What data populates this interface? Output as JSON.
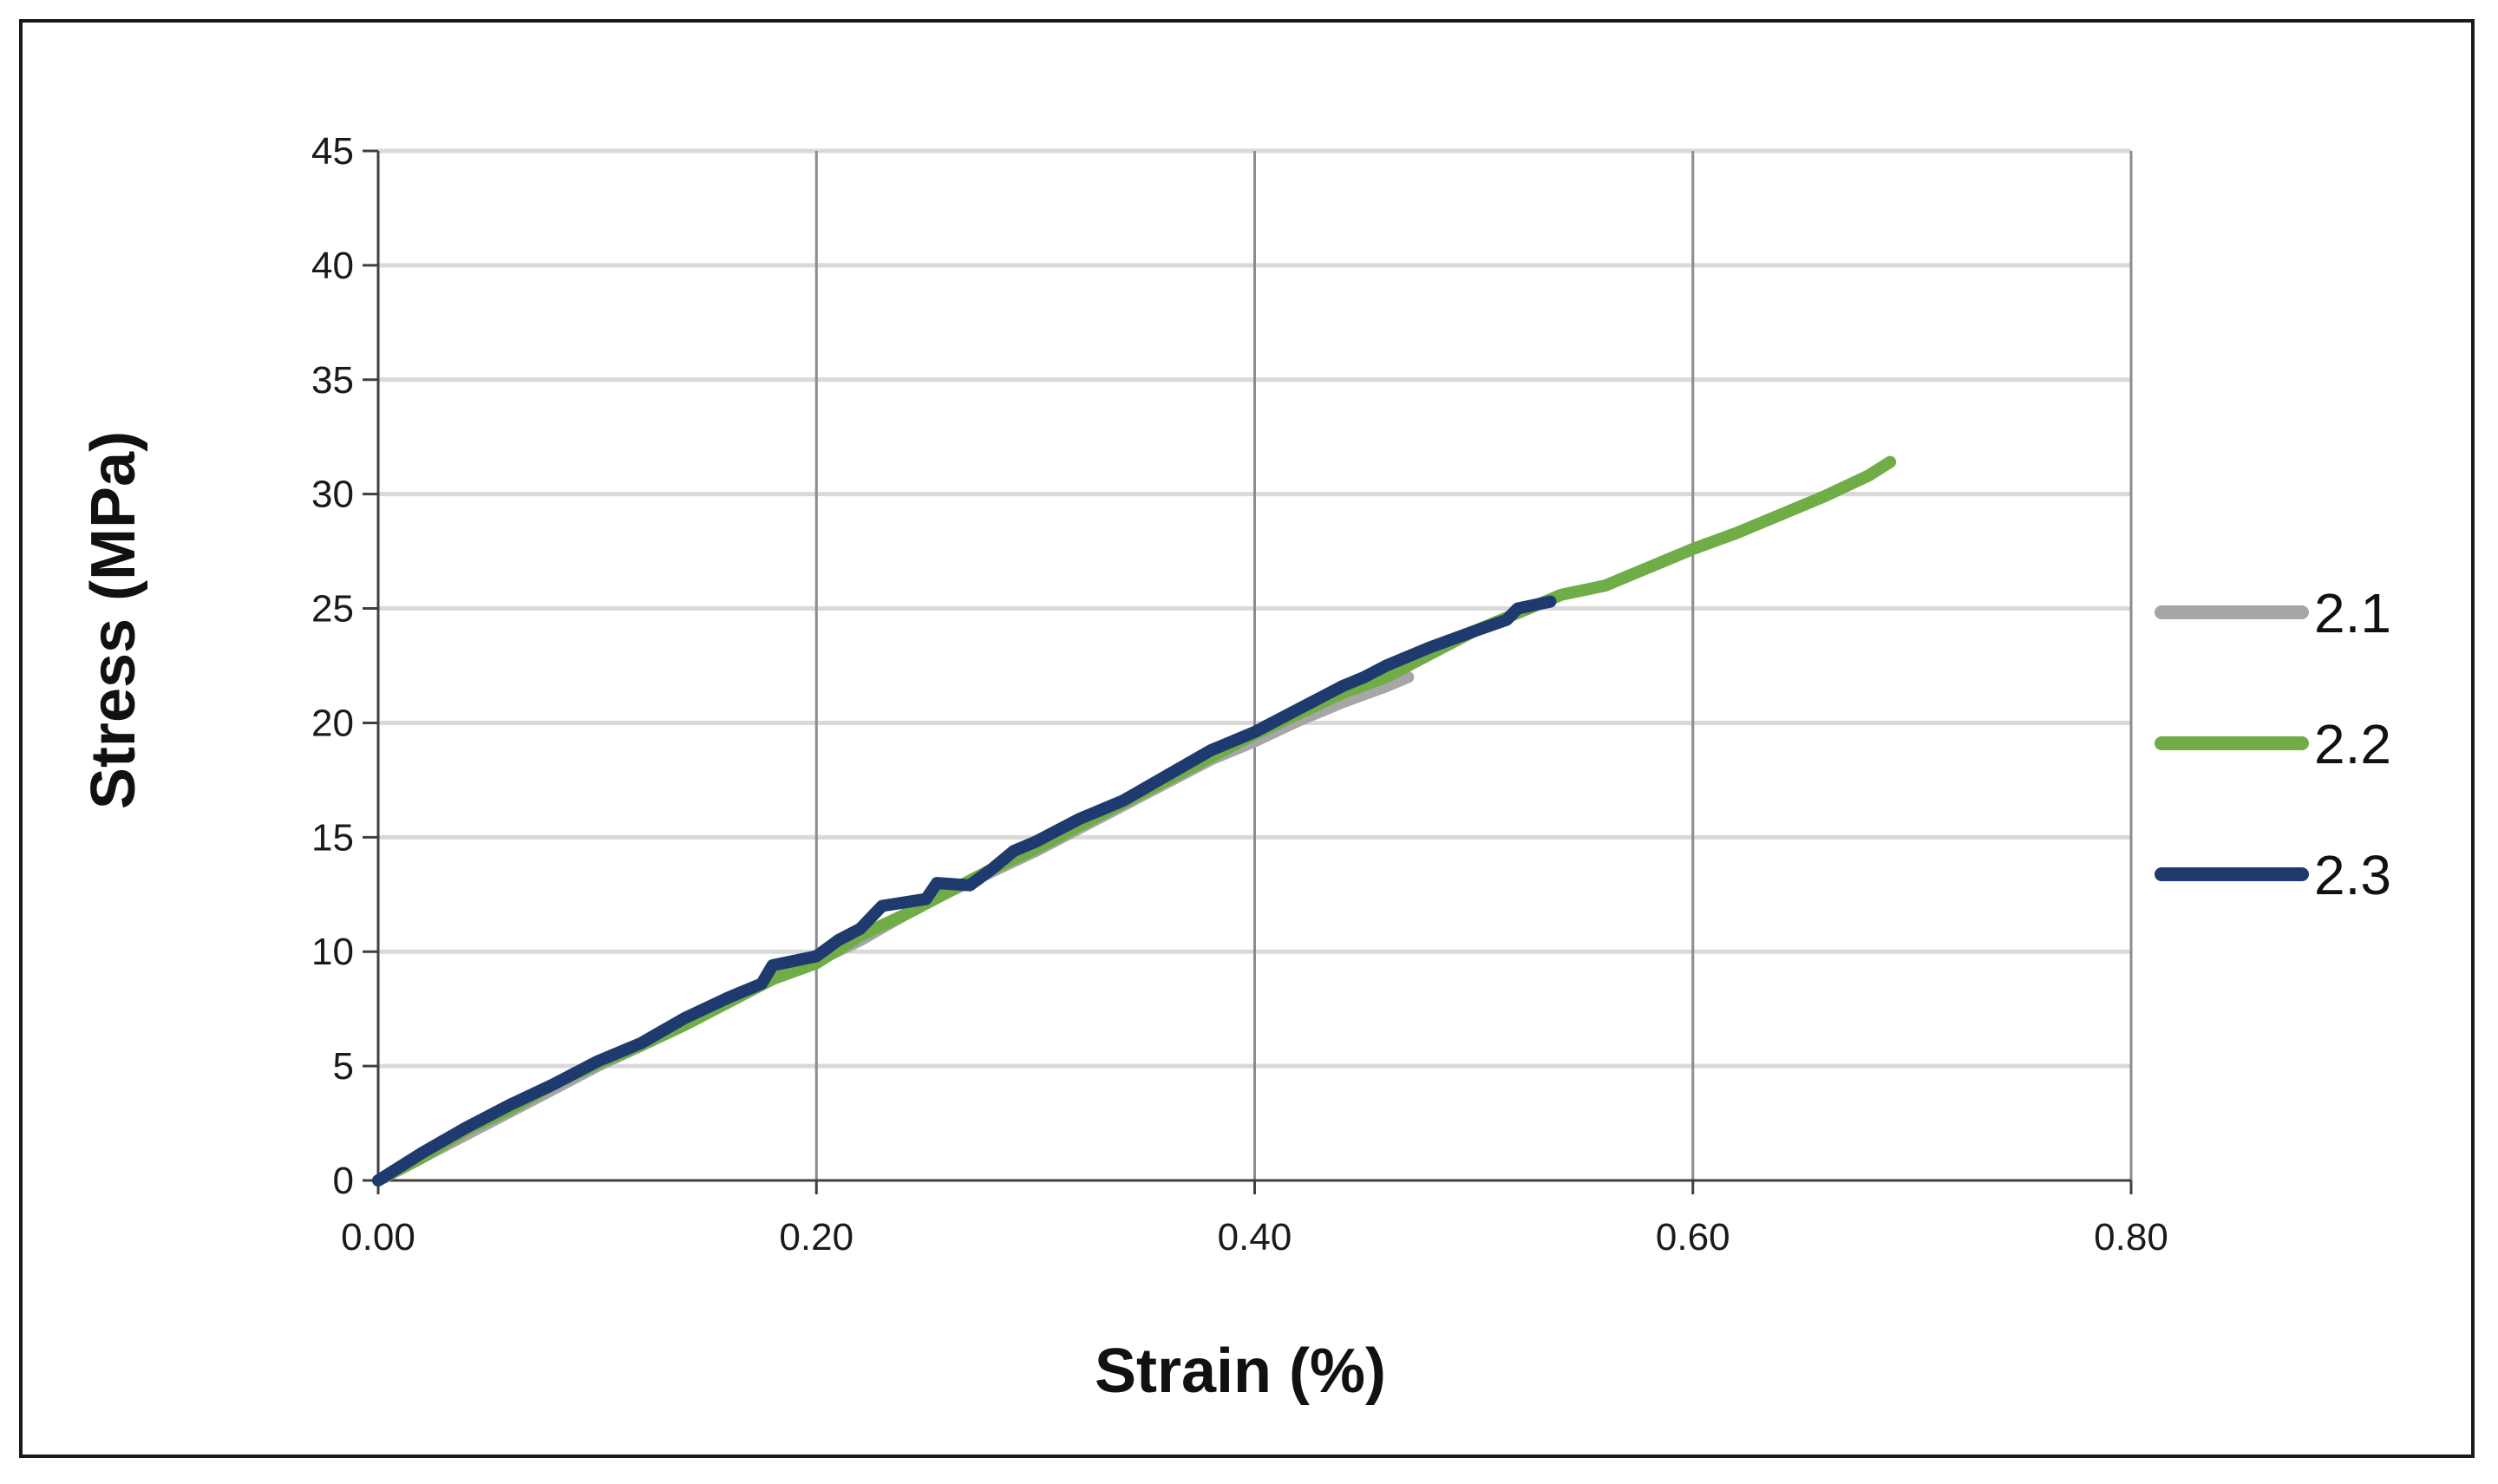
{
  "chart_data": {
    "type": "line",
    "xlabel": "Strain (%)",
    "ylabel": "Stress (MPa)",
    "xlim": [
      0,
      0.8
    ],
    "ylim": [
      0,
      45
    ],
    "x_ticks": [
      "0.00",
      "0.20",
      "0.40",
      "0.60",
      "0.80"
    ],
    "y_ticks": [
      "0",
      "5",
      "10",
      "15",
      "20",
      "25",
      "30",
      "35",
      "40",
      "45"
    ],
    "grid": "on",
    "legend_position": "right",
    "series": [
      {
        "name": "2.1",
        "color": "#a6a6a6",
        "x": [
          0.0,
          0.02,
          0.04,
          0.06,
          0.08,
          0.1,
          0.12,
          0.14,
          0.16,
          0.18,
          0.2,
          0.22,
          0.24,
          0.26,
          0.28,
          0.3,
          0.32,
          0.34,
          0.36,
          0.38,
          0.4,
          0.42,
          0.44,
          0.46,
          0.47
        ],
        "y": [
          0.0,
          1.0,
          2.0,
          3.0,
          4.0,
          5.0,
          5.9,
          6.9,
          7.9,
          8.8,
          9.6,
          10.5,
          11.6,
          12.6,
          13.5,
          14.4,
          15.4,
          16.4,
          17.4,
          18.4,
          19.2,
          20.1,
          20.9,
          21.6,
          22.0
        ]
      },
      {
        "name": "2.2",
        "color": "#70ad47",
        "x": [
          0.0,
          0.02,
          0.04,
          0.06,
          0.08,
          0.1,
          0.12,
          0.14,
          0.16,
          0.18,
          0.2,
          0.22,
          0.24,
          0.26,
          0.28,
          0.3,
          0.32,
          0.34,
          0.36,
          0.38,
          0.4,
          0.42,
          0.44,
          0.46,
          0.48,
          0.5,
          0.52,
          0.54,
          0.56,
          0.58,
          0.6,
          0.62,
          0.64,
          0.66,
          0.68,
          0.69
        ],
        "y": [
          0.0,
          1.0,
          2.2,
          3.1,
          4.2,
          5.1,
          5.9,
          6.8,
          7.8,
          8.8,
          9.5,
          10.7,
          11.6,
          12.6,
          13.6,
          14.5,
          15.5,
          16.5,
          17.5,
          18.5,
          19.5,
          20.4,
          21.3,
          22.0,
          23.0,
          24.0,
          24.8,
          25.6,
          26.0,
          26.8,
          27.6,
          28.3,
          29.1,
          29.9,
          30.8,
          31.4
        ]
      },
      {
        "name": "2.3",
        "color": "#1f3a6e",
        "x": [
          0.0,
          0.02,
          0.04,
          0.06,
          0.08,
          0.1,
          0.12,
          0.14,
          0.16,
          0.175,
          0.18,
          0.2,
          0.21,
          0.22,
          0.23,
          0.25,
          0.255,
          0.27,
          0.28,
          0.29,
          0.3,
          0.32,
          0.34,
          0.36,
          0.38,
          0.4,
          0.42,
          0.44,
          0.45,
          0.46,
          0.48,
          0.5,
          0.515,
          0.52,
          0.535
        ],
        "y": [
          0.0,
          1.2,
          2.3,
          3.3,
          4.2,
          5.2,
          6.0,
          7.1,
          8.0,
          8.6,
          9.4,
          9.8,
          10.5,
          11.0,
          12.0,
          12.3,
          13.0,
          12.9,
          13.6,
          14.4,
          14.8,
          15.8,
          16.6,
          17.7,
          18.8,
          19.6,
          20.6,
          21.6,
          22.0,
          22.5,
          23.3,
          24.0,
          24.5,
          25.0,
          25.3
        ]
      }
    ]
  }
}
